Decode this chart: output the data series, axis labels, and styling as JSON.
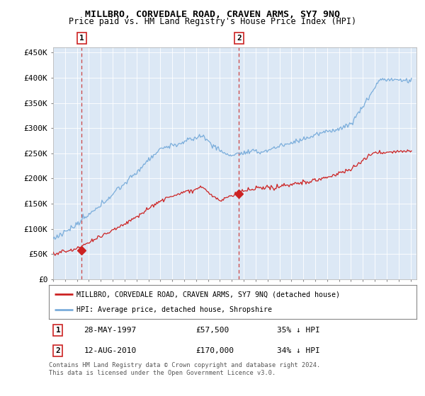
{
  "title": "MILLBRO, CORVEDALE ROAD, CRAVEN ARMS, SY7 9NQ",
  "subtitle": "Price paid vs. HM Land Registry's House Price Index (HPI)",
  "ylabel_ticks": [
    "£0",
    "£50K",
    "£100K",
    "£150K",
    "£200K",
    "£250K",
    "£300K",
    "£350K",
    "£400K",
    "£450K"
  ],
  "ytick_values": [
    0,
    50000,
    100000,
    150000,
    200000,
    250000,
    300000,
    350000,
    400000,
    450000
  ],
  "ylim": [
    0,
    460000
  ],
  "xlim_start": 1995.0,
  "xlim_end": 2025.5,
  "sale1_x": 1997.4,
  "sale1_y": 57500,
  "sale1_label": "1",
  "sale1_date": "28-MAY-1997",
  "sale1_price": "£57,500",
  "sale1_hpi": "35% ↓ HPI",
  "sale2_x": 2010.6,
  "sale2_y": 170000,
  "sale2_label": "2",
  "sale2_date": "12-AUG-2010",
  "sale2_price": "£170,000",
  "sale2_hpi": "34% ↓ HPI",
  "legend_line1": "MILLBRO, CORVEDALE ROAD, CRAVEN ARMS, SY7 9NQ (detached house)",
  "legend_line2": "HPI: Average price, detached house, Shropshire",
  "footer": "Contains HM Land Registry data © Crown copyright and database right 2024.\nThis data is licensed under the Open Government Licence v3.0.",
  "hpi_color": "#7aaddb",
  "price_color": "#cc2222",
  "plot_bg_color": "#dce8f5"
}
